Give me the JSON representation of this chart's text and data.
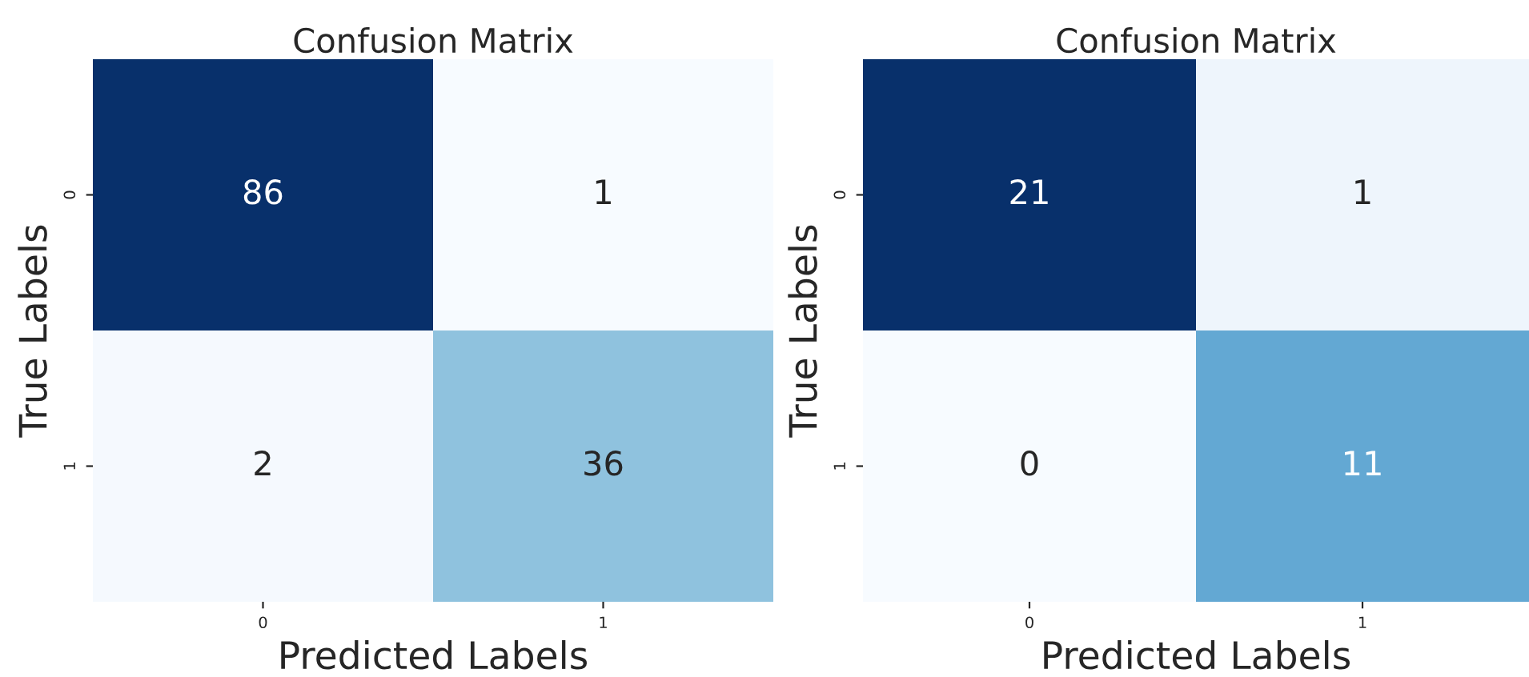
{
  "chart_data": [
    {
      "type": "heatmap",
      "title": "Confusion Matrix",
      "xlabel": "Predicted Labels",
      "ylabel": "True Labels",
      "categories": [
        "0",
        "1"
      ],
      "y_categories": [
        "0",
        "1"
      ],
      "cells": [
        [
          86,
          1
        ],
        [
          2,
          36
        ]
      ],
      "data_labels": true
    },
    {
      "type": "heatmap",
      "title": "Confusion Matrix",
      "xlabel": "Predicted Labels",
      "ylabel": "True Labels",
      "categories": [
        "0",
        "1"
      ],
      "y_categories": [
        "0",
        "1"
      ],
      "cells": [
        [
          21,
          1
        ],
        [
          0,
          11
        ]
      ],
      "data_labels": true
    }
  ]
}
